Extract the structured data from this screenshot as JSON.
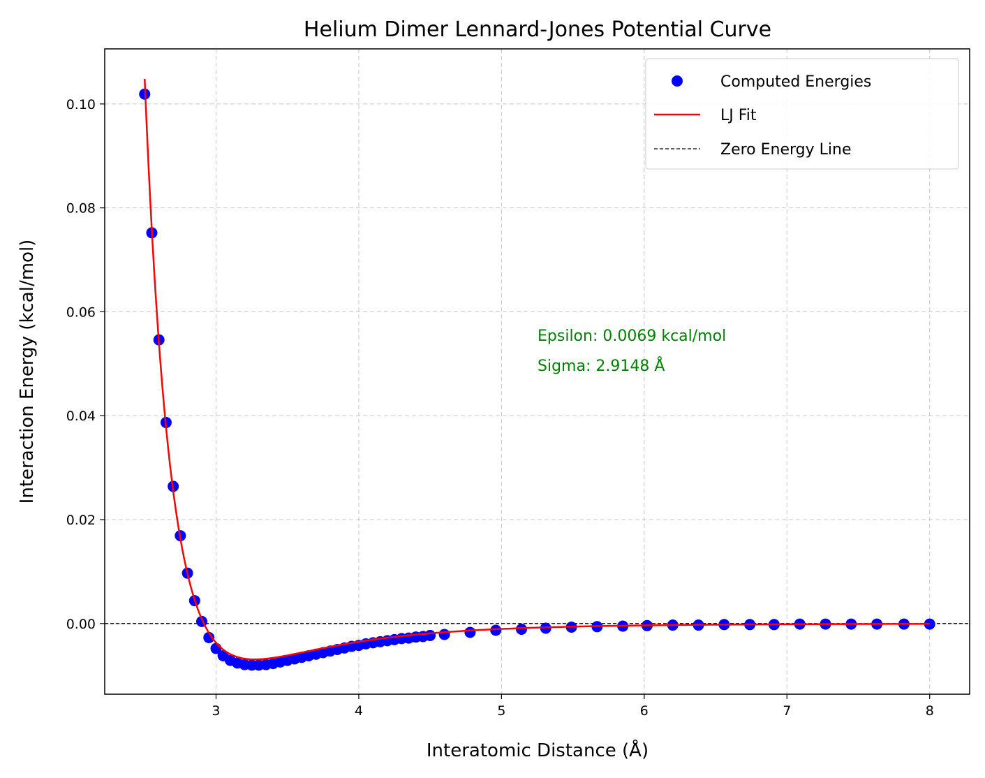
{
  "chart_data": {
    "type": "scatter",
    "title": "Helium Dimer Lennard-Jones Potential Curve",
    "xlabel": "Interatomic Distance (Å)",
    "ylabel": "Interaction Energy (kcal/mol)",
    "xlim": [
      2.22,
      8.28
    ],
    "ylim": [
      -0.0136,
      0.1106
    ],
    "xticks": [
      3,
      4,
      5,
      6,
      7,
      8
    ],
    "xtick_labels": [
      "3",
      "4",
      "5",
      "6",
      "7",
      "8"
    ],
    "yticks": [
      0.0,
      0.02,
      0.04,
      0.06,
      0.08,
      0.1
    ],
    "ytick_labels": [
      "0.00",
      "0.02",
      "0.04",
      "0.06",
      "0.08",
      "0.10"
    ],
    "grid": true,
    "legend_position": "top-right",
    "annotation": {
      "lines": [
        "Epsilon: 0.0069 kcal/mol",
        "Sigma: 2.9148 Å"
      ],
      "color": "#008000"
    },
    "series": [
      {
        "name": "Computed Energies",
        "kind": "scatter",
        "color": "#0000ff",
        "points": [
          [
            2.5,
            0.1019
          ],
          [
            2.55,
            0.0752
          ],
          [
            2.6,
            0.0546
          ],
          [
            2.65,
            0.0387
          ],
          [
            2.7,
            0.0264
          ],
          [
            2.75,
            0.0169
          ],
          [
            2.8,
            0.0097
          ],
          [
            2.85,
            0.0044
          ],
          [
            2.9,
            0.0004
          ],
          [
            2.95,
            -0.0027
          ],
          [
            3.0,
            -0.0048
          ],
          [
            3.05,
            -0.0062
          ],
          [
            3.1,
            -0.0071
          ],
          [
            3.15,
            -0.0076
          ],
          [
            3.2,
            -0.0079
          ],
          [
            3.25,
            -0.008
          ],
          [
            3.3,
            -0.008
          ],
          [
            3.35,
            -0.0079
          ],
          [
            3.4,
            -0.0077
          ],
          [
            3.45,
            -0.0074
          ],
          [
            3.5,
            -0.0071
          ],
          [
            3.55,
            -0.0068
          ],
          [
            3.6,
            -0.0065
          ],
          [
            3.65,
            -0.0062
          ],
          [
            3.7,
            -0.0059
          ],
          [
            3.75,
            -0.0056
          ],
          [
            3.8,
            -0.0053
          ],
          [
            3.85,
            -0.005
          ],
          [
            3.9,
            -0.0047
          ],
          [
            3.95,
            -0.0044
          ],
          [
            4.0,
            -0.0042
          ],
          [
            4.05,
            -0.0039
          ],
          [
            4.1,
            -0.0037
          ],
          [
            4.15,
            -0.0035
          ],
          [
            4.2,
            -0.0033
          ],
          [
            4.25,
            -0.0031
          ],
          [
            4.3,
            -0.0029
          ],
          [
            4.35,
            -0.0028
          ],
          [
            4.4,
            -0.0026
          ],
          [
            4.45,
            -0.0025
          ],
          [
            4.5,
            -0.0023
          ],
          [
            4.6,
            -0.0021
          ],
          [
            4.78,
            -0.0017
          ],
          [
            4.96,
            -0.0013
          ],
          [
            5.14,
            -0.0011
          ],
          [
            5.31,
            -0.0009
          ],
          [
            5.49,
            -0.0007
          ],
          [
            5.67,
            -0.0006
          ],
          [
            5.85,
            -0.0005
          ],
          [
            6.02,
            -0.0004
          ],
          [
            6.2,
            -0.0003
          ],
          [
            6.38,
            -0.0003
          ],
          [
            6.56,
            -0.0002
          ],
          [
            6.74,
            -0.0002
          ],
          [
            6.91,
            -0.0002
          ],
          [
            7.09,
            -0.0001
          ],
          [
            7.27,
            -0.0001
          ],
          [
            7.45,
            -0.0001
          ],
          [
            7.63,
            -0.0001
          ],
          [
            7.82,
            -0.0001
          ],
          [
            8.0,
            -0.0001
          ]
        ]
      },
      {
        "name": "LJ Fit",
        "kind": "line",
        "color": "#ff0000",
        "function": "lennard-jones",
        "epsilon": 0.0069,
        "sigma": 2.9148,
        "x_range": [
          2.5,
          8.0
        ]
      },
      {
        "name": "Zero Energy Line",
        "kind": "hline",
        "color": "#000000",
        "y": 0
      }
    ]
  }
}
